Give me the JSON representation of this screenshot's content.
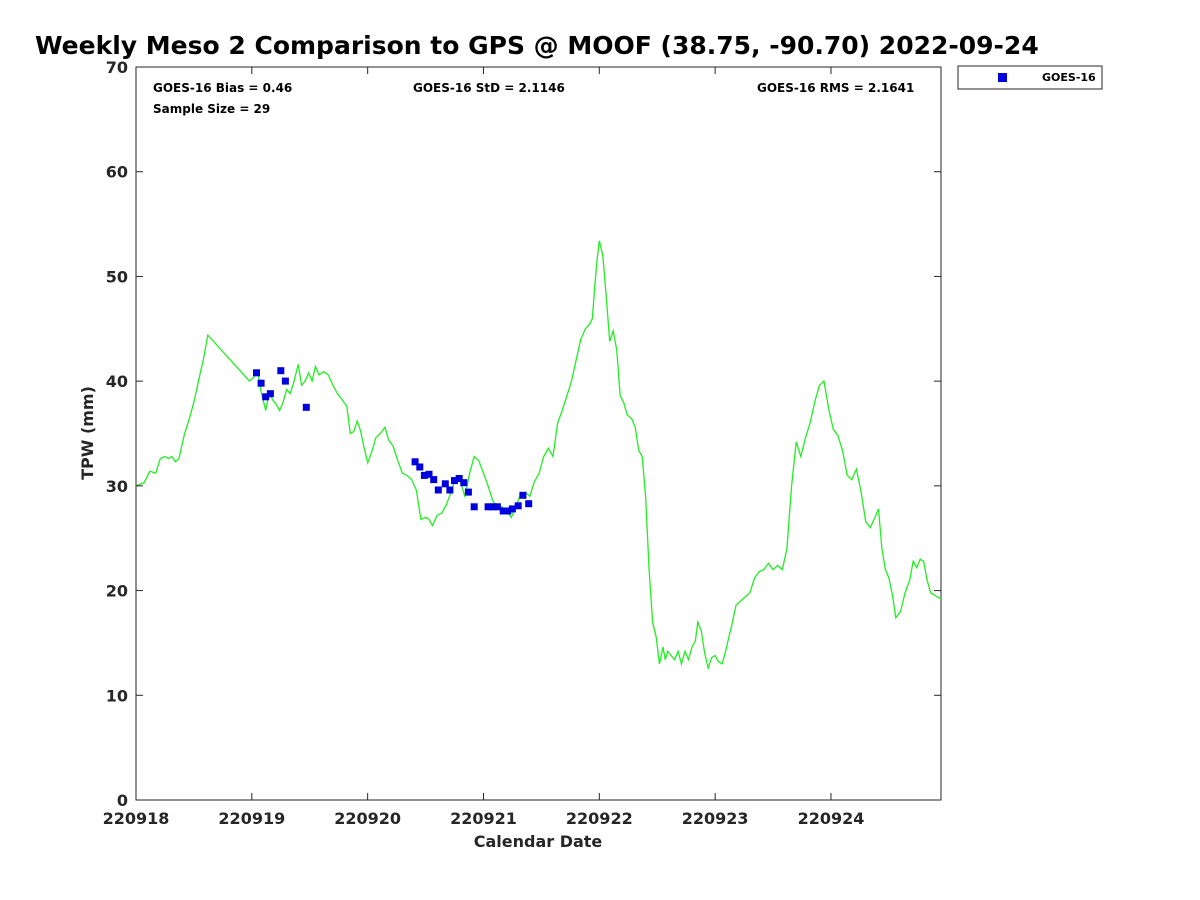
{
  "chart_data": {
    "type": "scatter",
    "title": "Weekly Meso 2 Comparison to GPS @ MOOF (38.75, -90.70) 2022-09-24",
    "xlabel": "Calendar Date",
    "ylabel": "TPW (mm)",
    "xlim": [
      0,
      6.95
    ],
    "ylim": [
      0,
      70
    ],
    "x_unit": "days since 220918",
    "x_ticks": [
      {
        "value": 0,
        "label": "220918"
      },
      {
        "value": 1,
        "label": "220919"
      },
      {
        "value": 2,
        "label": "220920"
      },
      {
        "value": 3,
        "label": "220921"
      },
      {
        "value": 4,
        "label": "220922"
      },
      {
        "value": 5,
        "label": "220923"
      },
      {
        "value": 6,
        "label": "220924"
      }
    ],
    "y_ticks": [
      {
        "value": 0,
        "label": "0"
      },
      {
        "value": 10,
        "label": "10"
      },
      {
        "value": 20,
        "label": "20"
      },
      {
        "value": 30,
        "label": "30"
      },
      {
        "value": 40,
        "label": "40"
      },
      {
        "value": 50,
        "label": "50"
      },
      {
        "value": 60,
        "label": "60"
      },
      {
        "value": 70,
        "label": "70"
      }
    ],
    "grid": false,
    "legend_position": "outside-top-right",
    "stats": {
      "bias": "GOES-16 Bias = 0.46",
      "std": "GOES-16 StD = 2.1146",
      "rms": "GOES-16 RMS = 2.1641",
      "sample": "Sample Size = 29"
    },
    "series": [
      {
        "name": "GOES-16",
        "kind": "scatter",
        "marker": "square",
        "color": "#0000dd",
        "x": [
          1.04,
          1.08,
          1.12,
          1.16,
          1.25,
          1.29,
          1.47,
          2.41,
          2.45,
          2.49,
          2.53,
          2.57,
          2.61,
          2.67,
          2.71,
          2.75,
          2.79,
          2.83,
          2.87,
          2.92,
          3.04,
          3.08,
          3.12,
          3.17,
          3.21,
          3.25,
          3.3,
          3.34,
          3.39
        ],
        "y": [
          40.8,
          39.8,
          38.5,
          38.8,
          41.0,
          40.0,
          37.5,
          32.3,
          31.8,
          31.0,
          31.1,
          30.6,
          29.6,
          30.2,
          29.6,
          30.5,
          30.7,
          30.3,
          29.4,
          28.0,
          28.0,
          28.0,
          28.0,
          27.6,
          27.6,
          27.8,
          28.1,
          29.1,
          28.3
        ]
      },
      {
        "name": "GPS",
        "kind": "line",
        "color": "#22ee22",
        "points": [
          [
            0.0,
            30.0
          ],
          [
            0.07,
            30.3
          ],
          [
            0.12,
            31.4
          ],
          [
            0.17,
            31.2
          ],
          [
            0.21,
            32.6
          ],
          [
            0.25,
            32.8
          ],
          [
            0.28,
            32.6
          ],
          [
            0.31,
            32.8
          ],
          [
            0.34,
            32.3
          ],
          [
            0.37,
            32.6
          ],
          [
            0.42,
            35.0
          ],
          [
            0.46,
            36.4
          ],
          [
            0.5,
            38.0
          ],
          [
            0.54,
            40.0
          ],
          [
            0.58,
            42.0
          ],
          [
            0.62,
            44.4
          ],
          [
            0.98,
            40.0
          ],
          [
            1.02,
            40.4
          ],
          [
            1.05,
            41.0
          ],
          [
            1.08,
            39.0
          ],
          [
            1.12,
            37.2
          ],
          [
            1.15,
            39.0
          ],
          [
            1.18,
            38.2
          ],
          [
            1.21,
            37.8
          ],
          [
            1.24,
            37.2
          ],
          [
            1.27,
            38.0
          ],
          [
            1.3,
            39.2
          ],
          [
            1.33,
            38.8
          ],
          [
            1.36,
            39.8
          ],
          [
            1.4,
            41.6
          ],
          [
            1.43,
            39.6
          ],
          [
            1.46,
            40.0
          ],
          [
            1.49,
            40.8
          ],
          [
            1.52,
            40.0
          ],
          [
            1.55,
            41.4
          ],
          [
            1.58,
            40.6
          ],
          [
            1.62,
            40.9
          ],
          [
            1.66,
            40.6
          ],
          [
            1.7,
            39.6
          ],
          [
            1.74,
            38.8
          ],
          [
            1.78,
            38.2
          ],
          [
            1.82,
            37.6
          ],
          [
            1.85,
            35.0
          ],
          [
            1.88,
            35.2
          ],
          [
            1.91,
            36.2
          ],
          [
            1.94,
            35.2
          ],
          [
            1.97,
            33.6
          ],
          [
            2.0,
            32.2
          ],
          [
            2.04,
            33.4
          ],
          [
            2.07,
            34.6
          ],
          [
            2.11,
            35.0
          ],
          [
            2.15,
            35.6
          ],
          [
            2.18,
            34.4
          ],
          [
            2.22,
            33.8
          ],
          [
            2.26,
            32.4
          ],
          [
            2.3,
            31.2
          ],
          [
            2.34,
            31.0
          ],
          [
            2.38,
            30.6
          ],
          [
            2.42,
            29.6
          ],
          [
            2.46,
            26.8
          ],
          [
            2.5,
            27.0
          ],
          [
            2.53,
            26.8
          ],
          [
            2.56,
            26.2
          ],
          [
            2.6,
            27.2
          ],
          [
            2.64,
            27.4
          ],
          [
            2.68,
            28.2
          ],
          [
            2.72,
            29.4
          ],
          [
            2.76,
            30.8
          ],
          [
            2.8,
            30.4
          ],
          [
            2.84,
            29.0
          ],
          [
            2.88,
            31.2
          ],
          [
            2.92,
            32.8
          ],
          [
            2.96,
            32.4
          ],
          [
            3.0,
            31.2
          ],
          [
            3.04,
            30.0
          ],
          [
            3.08,
            28.6
          ],
          [
            3.12,
            27.8
          ],
          [
            3.16,
            28.0
          ],
          [
            3.2,
            27.6
          ],
          [
            3.24,
            27.0
          ],
          [
            3.28,
            28.0
          ],
          [
            3.32,
            29.2
          ],
          [
            3.36,
            29.4
          ],
          [
            3.4,
            29.0
          ],
          [
            3.44,
            30.4
          ],
          [
            3.48,
            31.2
          ],
          [
            3.52,
            32.8
          ],
          [
            3.56,
            33.6
          ],
          [
            3.6,
            32.8
          ],
          [
            3.64,
            36.0
          ],
          [
            3.68,
            37.2
          ],
          [
            3.72,
            38.6
          ],
          [
            3.76,
            40.0
          ],
          [
            3.8,
            42.0
          ],
          [
            3.84,
            44.0
          ],
          [
            3.88,
            45.0
          ],
          [
            3.92,
            45.5
          ],
          [
            3.94,
            46.0
          ],
          [
            3.96,
            49.0
          ],
          [
            3.98,
            51.5
          ],
          [
            4.0,
            53.4
          ],
          [
            4.03,
            52.0
          ],
          [
            4.06,
            48.0
          ],
          [
            4.09,
            43.8
          ],
          [
            4.12,
            44.8
          ],
          [
            4.15,
            43.0
          ],
          [
            4.18,
            38.6
          ],
          [
            4.21,
            38.0
          ],
          [
            4.24,
            36.8
          ],
          [
            4.28,
            36.4
          ],
          [
            4.31,
            35.6
          ],
          [
            4.34,
            33.4
          ],
          [
            4.37,
            32.8
          ],
          [
            4.4,
            29.0
          ],
          [
            4.43,
            22.0
          ],
          [
            4.46,
            17.0
          ],
          [
            4.49,
            15.6
          ],
          [
            4.52,
            13.0
          ],
          [
            4.55,
            14.6
          ],
          [
            4.57,
            13.4
          ],
          [
            4.59,
            14.2
          ],
          [
            4.62,
            13.8
          ],
          [
            4.65,
            13.4
          ],
          [
            4.68,
            14.2
          ],
          [
            4.71,
            13.0
          ],
          [
            4.74,
            14.2
          ],
          [
            4.77,
            13.4
          ],
          [
            4.8,
            14.6
          ],
          [
            4.83,
            15.2
          ],
          [
            4.85,
            17.0
          ],
          [
            4.88,
            16.2
          ],
          [
            4.91,
            14.0
          ],
          [
            4.94,
            12.6
          ],
          [
            4.97,
            13.6
          ],
          [
            5.0,
            13.8
          ],
          [
            5.03,
            13.2
          ],
          [
            5.06,
            13.0
          ],
          [
            5.09,
            14.2
          ],
          [
            5.12,
            15.6
          ],
          [
            5.15,
            17.0
          ],
          [
            5.18,
            18.6
          ],
          [
            5.22,
            19.0
          ],
          [
            5.26,
            19.4
          ],
          [
            5.3,
            19.8
          ],
          [
            5.34,
            21.2
          ],
          [
            5.38,
            21.8
          ],
          [
            5.42,
            22.0
          ],
          [
            5.46,
            22.6
          ],
          [
            5.5,
            22.0
          ],
          [
            5.54,
            22.4
          ],
          [
            5.58,
            22.0
          ],
          [
            5.62,
            24.0
          ],
          [
            5.66,
            30.0
          ],
          [
            5.7,
            34.2
          ],
          [
            5.74,
            32.8
          ],
          [
            5.78,
            34.6
          ],
          [
            5.82,
            36.0
          ],
          [
            5.86,
            38.0
          ],
          [
            5.9,
            39.6
          ],
          [
            5.94,
            40.0
          ],
          [
            5.98,
            37.4
          ],
          [
            6.02,
            35.4
          ],
          [
            6.06,
            34.8
          ],
          [
            6.1,
            33.4
          ],
          [
            6.14,
            31.0
          ],
          [
            6.18,
            30.6
          ],
          [
            6.22,
            31.6
          ],
          [
            6.26,
            29.4
          ],
          [
            6.3,
            26.6
          ],
          [
            6.34,
            26.0
          ],
          [
            6.38,
            27.0
          ],
          [
            6.41,
            27.8
          ],
          [
            6.44,
            24.0
          ],
          [
            6.47,
            22.0
          ],
          [
            6.5,
            21.2
          ],
          [
            6.53,
            19.6
          ],
          [
            6.56,
            17.4
          ],
          [
            6.6,
            18.0
          ],
          [
            6.64,
            19.8
          ],
          [
            6.68,
            21.0
          ],
          [
            6.71,
            22.8
          ],
          [
            6.74,
            22.2
          ],
          [
            6.77,
            23.0
          ],
          [
            6.8,
            22.8
          ],
          [
            6.83,
            21.0
          ],
          [
            6.86,
            19.8
          ],
          [
            6.89,
            19.6
          ],
          [
            6.92,
            19.4
          ],
          [
            6.95,
            19.2
          ]
        ]
      }
    ]
  }
}
